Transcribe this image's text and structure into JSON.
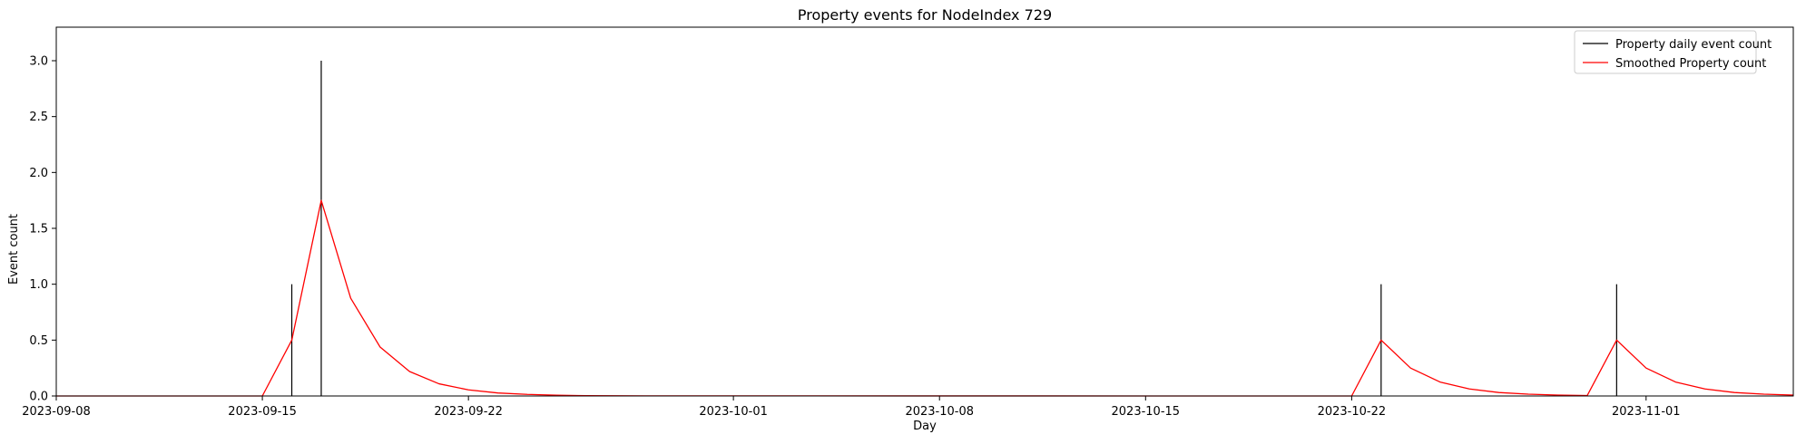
{
  "chart_data": {
    "type": "line",
    "title": "Property events for NodeIndex 729",
    "xlabel": "Day",
    "ylabel": "Event count",
    "xlim": [
      "2023-09-08",
      "2023-11-06"
    ],
    "ylim": [
      0,
      3.3
    ],
    "x_ticks": [
      "2023-09-08",
      "2023-09-15",
      "2023-09-22",
      "2023-10-01",
      "2023-10-08",
      "2023-10-15",
      "2023-10-22",
      "2023-11-01"
    ],
    "y_ticks": [
      "0.0",
      "0.5",
      "1.0",
      "1.5",
      "2.0",
      "2.5",
      "3.0"
    ],
    "grid": false,
    "legend_position": "top-right",
    "series": [
      {
        "name": "Property daily event count",
        "style": "vlines",
        "color": "#000000",
        "points": [
          {
            "x": "2023-09-16",
            "y": 1
          },
          {
            "x": "2023-09-17",
            "y": 3
          },
          {
            "x": "2023-10-23",
            "y": 1
          },
          {
            "x": "2023-10-31",
            "y": 1
          }
        ]
      },
      {
        "name": "Smoothed Property count",
        "style": "line",
        "color": "#ff0000",
        "points": [
          {
            "x": "2023-09-08",
            "y": 0
          },
          {
            "x": "2023-09-15",
            "y": 0
          },
          {
            "x": "2023-09-16",
            "y": 0.5
          },
          {
            "x": "2023-09-17",
            "y": 1.75
          },
          {
            "x": "2023-09-18",
            "y": 0.875
          },
          {
            "x": "2023-09-19",
            "y": 0.4375
          },
          {
            "x": "2023-09-20",
            "y": 0.219
          },
          {
            "x": "2023-09-21",
            "y": 0.109
          },
          {
            "x": "2023-09-22",
            "y": 0.055
          },
          {
            "x": "2023-09-23",
            "y": 0.027
          },
          {
            "x": "2023-09-24",
            "y": 0.014
          },
          {
            "x": "2023-09-25",
            "y": 0.007
          },
          {
            "x": "2023-09-26",
            "y": 0.003
          },
          {
            "x": "2023-09-28",
            "y": 0.001
          },
          {
            "x": "2023-10-22",
            "y": 0
          },
          {
            "x": "2023-10-23",
            "y": 0.5
          },
          {
            "x": "2023-10-24",
            "y": 0.25
          },
          {
            "x": "2023-10-25",
            "y": 0.125
          },
          {
            "x": "2023-10-26",
            "y": 0.0625
          },
          {
            "x": "2023-10-27",
            "y": 0.031
          },
          {
            "x": "2023-10-28",
            "y": 0.016
          },
          {
            "x": "2023-10-29",
            "y": 0.008
          },
          {
            "x": "2023-10-30",
            "y": 0.004
          },
          {
            "x": "2023-10-31",
            "y": 0.5
          },
          {
            "x": "2023-11-01",
            "y": 0.25
          },
          {
            "x": "2023-11-02",
            "y": 0.125
          },
          {
            "x": "2023-11-03",
            "y": 0.0625
          },
          {
            "x": "2023-11-04",
            "y": 0.031
          },
          {
            "x": "2023-11-05",
            "y": 0.016
          },
          {
            "x": "2023-11-06",
            "y": 0.008
          }
        ]
      }
    ]
  }
}
